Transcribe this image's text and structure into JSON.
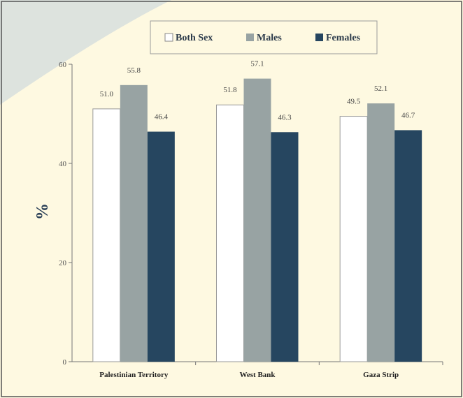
{
  "colors": {
    "page_background": "#fef9e1",
    "corner_swoosh": "#dde3de",
    "frame_border": "#555555",
    "both_sex": "#ffffff",
    "males": "#98a3a3",
    "females": "#264660"
  },
  "chart_data": {
    "type": "bar",
    "title": "",
    "xlabel": "",
    "ylabel": "%",
    "ylim": [
      0,
      60
    ],
    "yticks": [
      0,
      20,
      40,
      60
    ],
    "grid": false,
    "legend_placement": "top-center",
    "categories": [
      "Palestinian Territory",
      "West Bank",
      "Gaza Strip"
    ],
    "series": [
      {
        "name": "Both Sex",
        "values": [
          51.0,
          51.8,
          49.5
        ],
        "labels": [
          "51.0",
          "51.8",
          "49.5"
        ]
      },
      {
        "name": "Males",
        "values": [
          55.8,
          57.1,
          52.1
        ],
        "labels": [
          "55.8",
          "57.1",
          "52.1"
        ]
      },
      {
        "name": "Females",
        "values": [
          46.4,
          46.3,
          46.7
        ],
        "labels": [
          "46.4",
          "46.3",
          "46.7"
        ]
      }
    ]
  }
}
